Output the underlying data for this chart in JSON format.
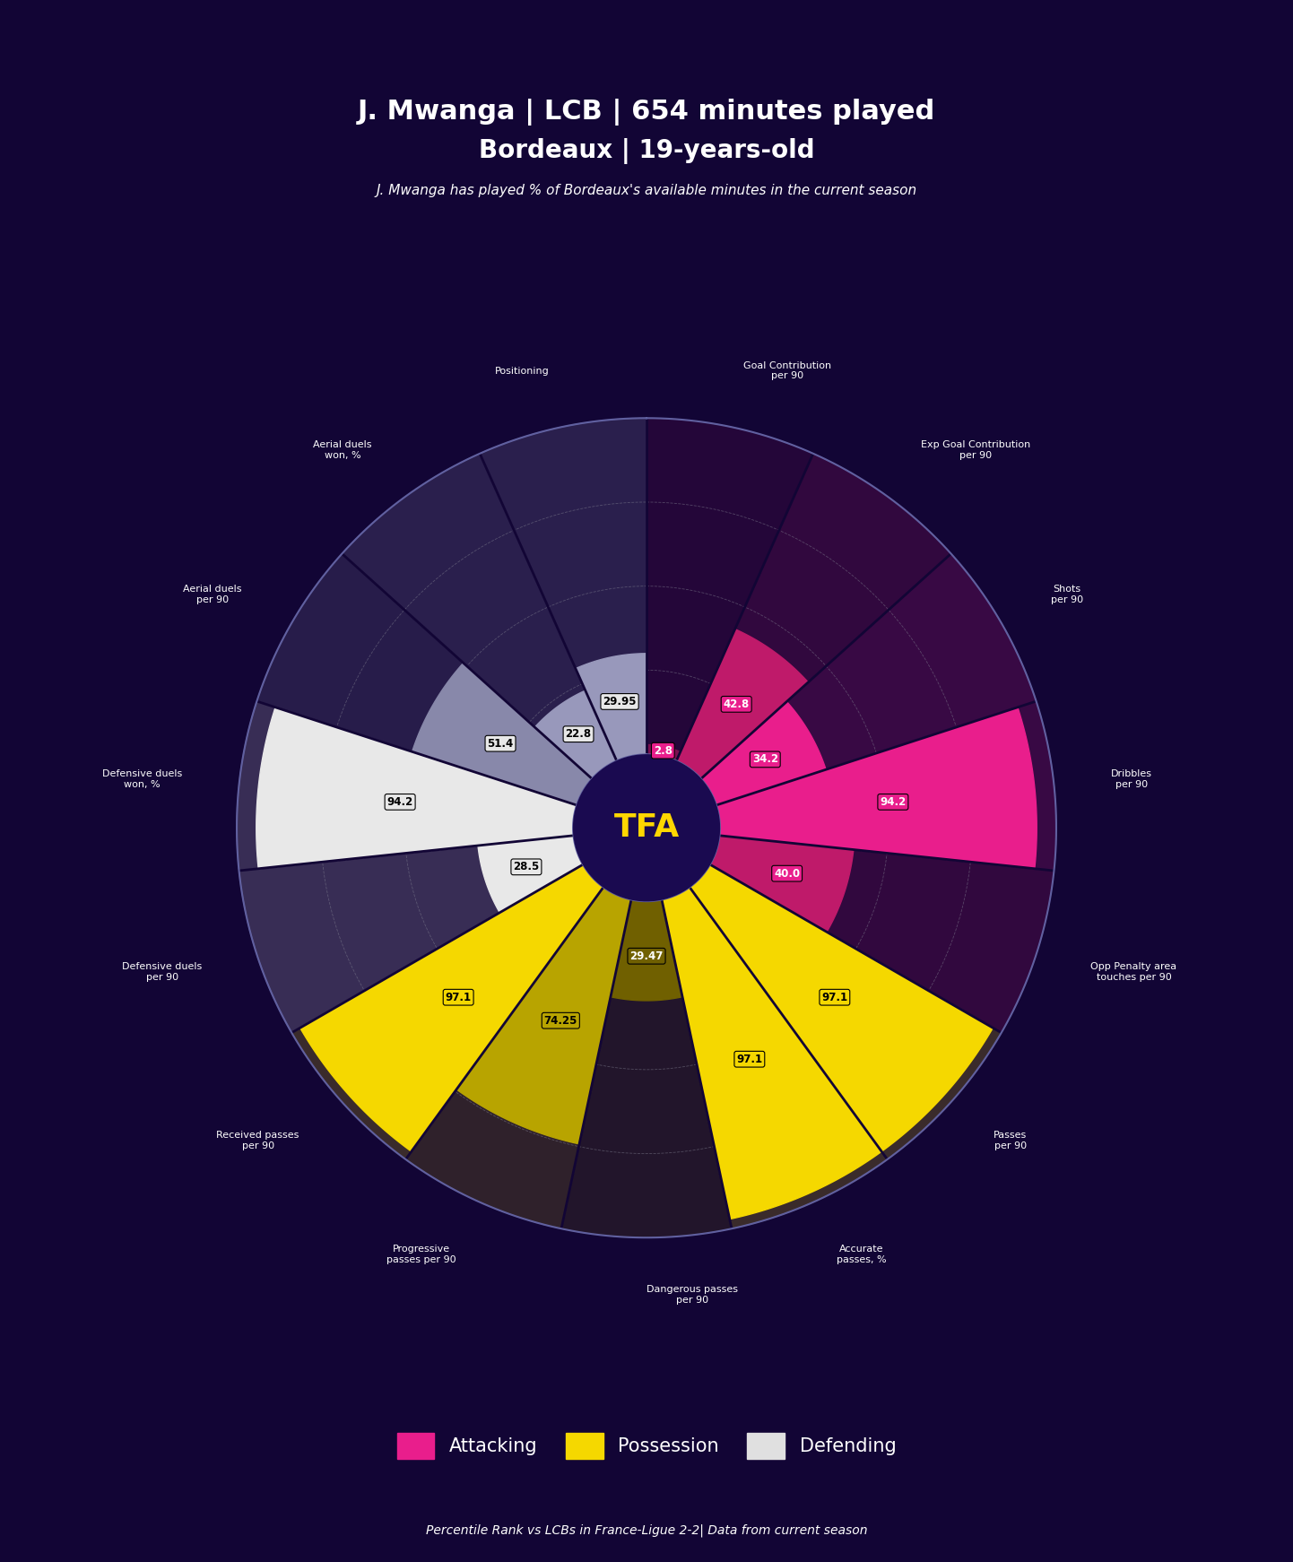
{
  "title_line1": "J. Mwanga | LCB | 654 minutes played",
  "title_line2": "Bordeaux | 19-years-old",
  "subtitle": "J. Mwanga has played % of Bordeaux's available minutes in the current season",
  "footer": "Percentile Rank vs LCBs in France-Ligue 2-2| Data from current season",
  "bg_color": "#120535",
  "categories": [
    "Goal Contribution\nper 90",
    "Exp Goal Contribution\nper 90",
    "Shots\nper 90",
    "Dribbles\nper 90",
    "Opp Penalty area\ntouches per 90",
    "Passes\nper 90",
    "Accurate\npasses, %",
    "Dangerous passes\nper 90",
    "Progressive\npasses per 90",
    "Received passes\nper 90",
    "Defensive duels\nper 90",
    "Defensive duels\nwon, %",
    "Aerial duels\nper 90",
    "Aerial duels\nwon, %",
    "Positioning"
  ],
  "values": [
    2.8,
    42.8,
    34.2,
    94.2,
    40.0,
    97.1,
    97.1,
    29.47,
    74.25,
    97.1,
    28.5,
    94.2,
    51.4,
    22.8,
    29.95
  ],
  "slice_colors": [
    "#7b1050",
    "#bf1a6a",
    "#e91e8c",
    "#e91e8c",
    "#bf1a6a",
    "#f5d800",
    "#f5d800",
    "#706000",
    "#b8a400",
    "#f5d800",
    "#e8e8e8",
    "#e8e8e8",
    "#8888aa",
    "#9898bb",
    "#9898bb"
  ],
  "label_box_colors": [
    "#e91e8c",
    "#e91e8c",
    "#e91e8c",
    "#e91e8c",
    "#e91e8c",
    "#f5d800",
    "#f5d800",
    "#706000",
    "#b8a400",
    "#f5d800",
    "#e8e8e8",
    "#e8e8e8",
    "#e8e8e8",
    "#e8e8e8",
    "#e8e8e8"
  ],
  "label_text_colors": [
    "#ffffff",
    "#ffffff",
    "#ffffff",
    "#ffffff",
    "#ffffff",
    "#000000",
    "#000000",
    "#ffffff",
    "#000000",
    "#000000",
    "#000000",
    "#000000",
    "#000000",
    "#000000",
    "#000000"
  ],
  "category_groups": [
    "attacking",
    "attacking",
    "attacking",
    "attacking",
    "attacking",
    "possession",
    "possession",
    "possession",
    "possession",
    "possession",
    "defending",
    "defending",
    "defending",
    "defending",
    "defending"
  ],
  "legend_items": [
    {
      "label": "Attacking",
      "color": "#e91e8c"
    },
    {
      "label": "Possession",
      "color": "#f5d800"
    },
    {
      "label": "Defending",
      "color": "#e0e0e0"
    }
  ],
  "inner_r": 0.18,
  "outer_r": 1.0,
  "max_val": 100,
  "grid_color": "#808090",
  "divider_color": "#120535",
  "center_circle_color": "#1a0a50",
  "tfa_color": "#ffd700",
  "tfa_fontsize": 26,
  "label_fontsize": 8.5,
  "cat_fontsize": 8.0,
  "title1_fontsize": 22,
  "title2_fontsize": 20,
  "subtitle_fontsize": 11,
  "footer_fontsize": 10,
  "legend_fontsize": 15
}
